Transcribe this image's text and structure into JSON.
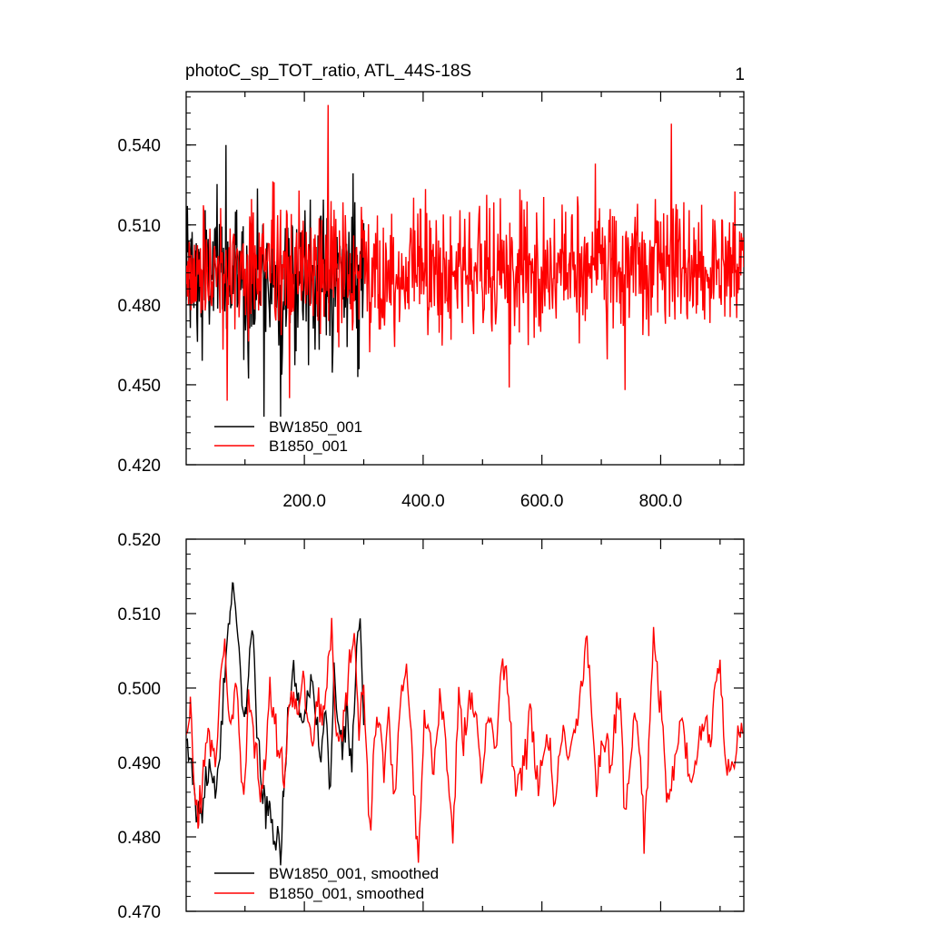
{
  "chart_data": [
    {
      "type": "line",
      "title": "photoC_sp_TOT_ratio, ATL_44S-18S",
      "panel_label": "1",
      "xlabel": "",
      "ylabel": "",
      "xlim": [
        1,
        940
      ],
      "ylim": [
        0.42,
        0.56
      ],
      "grid": false,
      "legend_position": "bottom-left",
      "x_tick_labels": [
        "200.0",
        "400.0",
        "600.0",
        "800.0"
      ],
      "y_tick_labels": [
        "0.420",
        "0.450",
        "0.480",
        "0.510",
        "0.540"
      ],
      "series": [
        {
          "name": "BW1850_001",
          "color": "#000000",
          "x_range": [
            1,
            300
          ],
          "mean": 0.491,
          "stdev": 0.014,
          "peaks": [
            [
              68,
              0.54
            ],
            [
              160,
              0.438
            ],
            [
              132,
              0.438
            ],
            [
              28,
              0.459
            ]
          ]
        },
        {
          "name": "B1850_001",
          "color": "#ff0000",
          "x_range": [
            1,
            940
          ],
          "mean": 0.493,
          "stdev": 0.0125,
          "peaks": [
            [
              240,
              0.555
            ],
            [
              818,
              0.548
            ],
            [
              70,
              0.444
            ],
            [
              175,
              0.445
            ],
            [
              545,
              0.449
            ],
            [
              740,
              0.448
            ]
          ]
        }
      ]
    },
    {
      "type": "line",
      "title": "",
      "xlabel": "",
      "ylabel": "",
      "xlim": [
        1,
        940
      ],
      "ylim": [
        0.47,
        0.52
      ],
      "grid": false,
      "legend_position": "bottom-left",
      "y_tick_labels": [
        "0.470",
        "0.480",
        "0.490",
        "0.500",
        "0.510",
        "0.520"
      ],
      "series": [
        {
          "name": "BW1850_001, smoothed",
          "color": "#000000",
          "points": [
            [
              1,
              0.492
            ],
            [
              10,
              0.49
            ],
            [
              18,
              0.482
            ],
            [
              28,
              0.485
            ],
            [
              40,
              0.489
            ],
            [
              50,
              0.485
            ],
            [
              58,
              0.492
            ],
            [
              68,
              0.505
            ],
            [
              75,
              0.51
            ],
            [
              80,
              0.515
            ],
            [
              88,
              0.507
            ],
            [
              95,
              0.498
            ],
            [
              102,
              0.496
            ],
            [
              108,
              0.505
            ],
            [
              112,
              0.509
            ],
            [
              120,
              0.495
            ],
            [
              128,
              0.488
            ],
            [
              135,
              0.483
            ],
            [
              142,
              0.484
            ],
            [
              150,
              0.478
            ],
            [
              155,
              0.482
            ],
            [
              160,
              0.477
            ],
            [
              165,
              0.486
            ],
            [
              172,
              0.496
            ],
            [
              180,
              0.502
            ],
            [
              188,
              0.5
            ],
            [
              195,
              0.496
            ],
            [
              205,
              0.498
            ],
            [
              212,
              0.503
            ],
            [
              220,
              0.496
            ],
            [
              228,
              0.49
            ],
            [
              236,
              0.497
            ],
            [
              244,
              0.486
            ],
            [
              250,
              0.503
            ],
            [
              258,
              0.495
            ],
            [
              265,
              0.492
            ],
            [
              272,
              0.497
            ],
            [
              280,
              0.49
            ],
            [
              288,
              0.505
            ],
            [
              294,
              0.51
            ],
            [
              300,
              0.495
            ]
          ]
        },
        {
          "name": "B1850_001, smoothed",
          "color": "#ff0000",
          "points": [
            [
              1,
              0.493
            ],
            [
              8,
              0.498
            ],
            [
              15,
              0.487
            ],
            [
              22,
              0.482
            ],
            [
              30,
              0.49
            ],
            [
              40,
              0.494
            ],
            [
              50,
              0.49
            ],
            [
              58,
              0.5
            ],
            [
              62,
              0.504
            ],
            [
              66,
              0.506
            ],
            [
              72,
              0.498
            ],
            [
              80,
              0.496
            ],
            [
              86,
              0.502
            ],
            [
              90,
              0.494
            ],
            [
              98,
              0.485
            ],
            [
              106,
              0.499
            ],
            [
              112,
              0.496
            ],
            [
              118,
              0.491
            ],
            [
              126,
              0.485
            ],
            [
              134,
              0.49
            ],
            [
              142,
              0.498
            ],
            [
              150,
              0.496
            ],
            [
              158,
              0.491
            ],
            [
              166,
              0.488
            ],
            [
              174,
              0.498
            ],
            [
              182,
              0.5
            ],
            [
              190,
              0.496
            ],
            [
              198,
              0.502
            ],
            [
              206,
              0.495
            ],
            [
              214,
              0.492
            ],
            [
              222,
              0.498
            ],
            [
              230,
              0.494
            ],
            [
              238,
              0.5
            ],
            [
              246,
              0.509
            ],
            [
              252,
              0.497
            ],
            [
              260,
              0.492
            ],
            [
              268,
              0.498
            ],
            [
              276,
              0.503
            ],
            [
              284,
              0.507
            ],
            [
              292,
              0.494
            ],
            [
              300,
              0.501
            ],
            [
              310,
              0.48
            ],
            [
              318,
              0.494
            ],
            [
              326,
              0.497
            ],
            [
              334,
              0.489
            ],
            [
              342,
              0.497
            ],
            [
              352,
              0.484
            ],
            [
              362,
              0.498
            ],
            [
              372,
              0.503
            ],
            [
              382,
              0.49
            ],
            [
              392,
              0.478
            ],
            [
              400,
              0.492
            ],
            [
              408,
              0.497
            ],
            [
              416,
              0.488
            ],
            [
              424,
              0.495
            ],
            [
              432,
              0.498
            ],
            [
              440,
              0.49
            ],
            [
              450,
              0.48
            ],
            [
              460,
              0.499
            ],
            [
              468,
              0.493
            ],
            [
              476,
              0.497
            ],
            [
              484,
              0.498
            ],
            [
              492,
              0.494
            ],
            [
              500,
              0.487
            ],
            [
              508,
              0.497
            ],
            [
              516,
              0.495
            ],
            [
              524,
              0.492
            ],
            [
              532,
              0.504
            ],
            [
              540,
              0.503
            ],
            [
              548,
              0.494
            ],
            [
              556,
              0.486
            ],
            [
              564,
              0.489
            ],
            [
              572,
              0.49
            ],
            [
              580,
              0.499
            ],
            [
              588,
              0.49
            ],
            [
              596,
              0.487
            ],
            [
              604,
              0.493
            ],
            [
              612,
              0.494
            ],
            [
              620,
              0.484
            ],
            [
              628,
              0.49
            ],
            [
              636,
              0.494
            ],
            [
              644,
              0.49
            ],
            [
              652,
              0.494
            ],
            [
              660,
              0.496
            ],
            [
              668,
              0.501
            ],
            [
              676,
              0.507
            ],
            [
              684,
              0.497
            ],
            [
              692,
              0.487
            ],
            [
              700,
              0.492
            ],
            [
              708,
              0.493
            ],
            [
              716,
              0.489
            ],
            [
              724,
              0.496
            ],
            [
              732,
              0.499
            ],
            [
              740,
              0.484
            ],
            [
              748,
              0.489
            ],
            [
              756,
              0.497
            ],
            [
              764,
              0.493
            ],
            [
              772,
              0.48
            ],
            [
              780,
              0.492
            ],
            [
              788,
              0.507
            ],
            [
              796,
              0.5
            ],
            [
              804,
              0.495
            ],
            [
              812,
              0.483
            ],
            [
              820,
              0.488
            ],
            [
              828,
              0.492
            ],
            [
              836,
              0.497
            ],
            [
              844,
              0.49
            ],
            [
              852,
              0.488
            ],
            [
              860,
              0.49
            ],
            [
              868,
              0.493
            ],
            [
              876,
              0.496
            ],
            [
              884,
              0.493
            ],
            [
              892,
              0.5
            ],
            [
              900,
              0.504
            ],
            [
              908,
              0.49
            ],
            [
              916,
              0.49
            ],
            [
              924,
              0.489
            ],
            [
              932,
              0.496
            ],
            [
              940,
              0.494
            ]
          ]
        }
      ]
    }
  ]
}
